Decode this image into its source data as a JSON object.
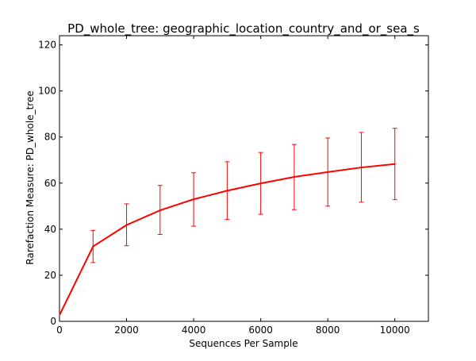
{
  "chart_data": {
    "type": "line",
    "title": "PD_whole_tree: geographic_location_country_and_or_sea_s",
    "xlabel": "Sequences Per Sample",
    "ylabel": "Rarefaction Measure: PD_whole_tree",
    "xlim": [
      0,
      11000
    ],
    "ylim": [
      0,
      124
    ],
    "xticks": [
      0,
      2000,
      4000,
      6000,
      8000,
      10000
    ],
    "yticks": [
      0,
      20,
      40,
      60,
      80,
      100,
      120
    ],
    "grid": false,
    "legend": "none",
    "series": [
      {
        "color": "#ff0000",
        "x": [
          10,
          1000,
          2000,
          3000,
          4000,
          5000,
          6000,
          7000,
          8000,
          9000,
          10000
        ],
        "y": [
          3,
          32.5,
          41.8,
          48.2,
          53,
          56.7,
          59.9,
          62.7,
          64.8,
          66.8,
          68.3
        ],
        "err_low": [
          null,
          25.5,
          32.8,
          37.7,
          41.3,
          44.2,
          46.5,
          48.5,
          50,
          51.7,
          52.8
        ],
        "err_high": [
          null,
          39.5,
          51,
          59,
          64.5,
          69.3,
          73.3,
          76.8,
          79.6,
          82,
          83.8
        ]
      }
    ]
  }
}
